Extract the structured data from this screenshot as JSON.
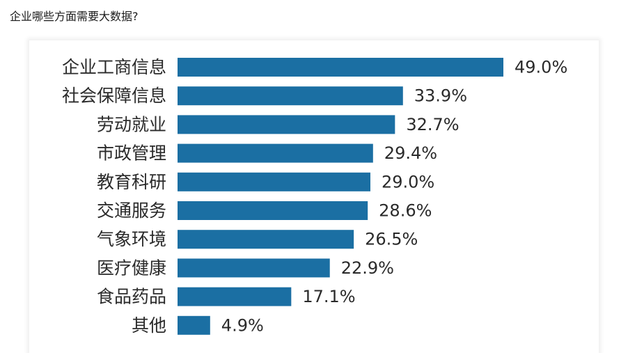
{
  "page": {
    "heading": "企业哪些方面需要大数据?"
  },
  "colors": {
    "bar": "#1b6fa3",
    "text": "#2a2a2a"
  },
  "chart_data": {
    "type": "bar",
    "orientation": "horizontal",
    "title": "",
    "xlabel": "",
    "ylabel": "",
    "categories": [
      "企业工商信息",
      "社会保障信息",
      "劳动就业",
      "市政管理",
      "教育科研",
      "交通服务",
      "气象环境",
      "医疗健康",
      "食品药品",
      "其他"
    ],
    "values": [
      49.0,
      33.9,
      32.7,
      29.4,
      29.0,
      28.6,
      26.5,
      22.9,
      17.1,
      4.9
    ],
    "value_labels": [
      "49.0%",
      "33.9%",
      "32.7%",
      "29.4%",
      "29.0%",
      "28.6%",
      "26.5%",
      "22.9%",
      "17.1%",
      "4.9%"
    ],
    "xlim": [
      0,
      49
    ],
    "grid": false,
    "legend": "none"
  }
}
